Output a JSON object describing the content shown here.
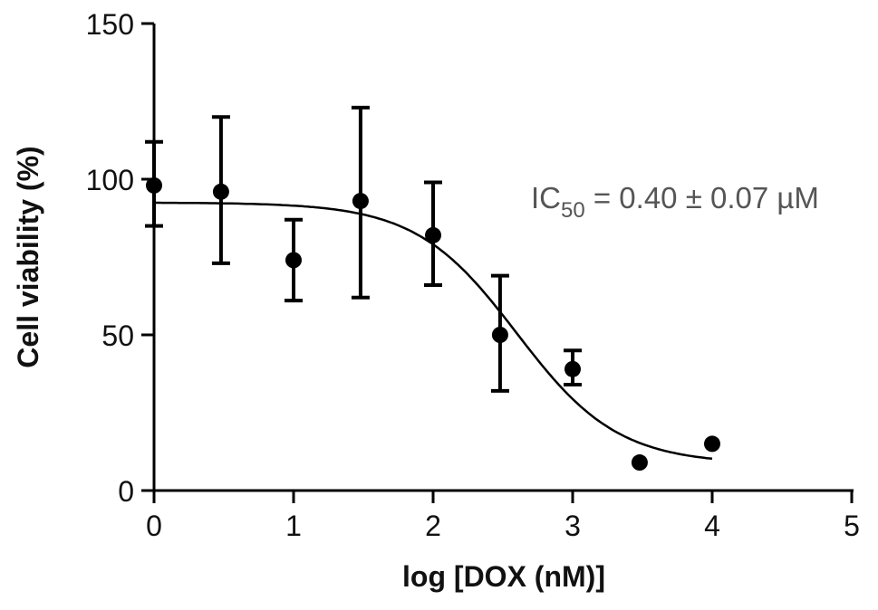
{
  "chart_data": {
    "type": "scatter",
    "xlabel": "log [DOX (nM)]",
    "ylabel": "Cell viability (%)",
    "xlim": [
      0,
      5
    ],
    "ylim": [
      0,
      150
    ],
    "x_ticks": [
      "0",
      "1",
      "2",
      "3",
      "4",
      "5"
    ],
    "y_ticks": [
      "0",
      "50",
      "100",
      "150"
    ],
    "grid": false,
    "points": [
      {
        "x": 0.0,
        "y": 98,
        "err_low": 85,
        "err_high": 112
      },
      {
        "x": 0.48,
        "y": 96,
        "err_low": 73,
        "err_high": 120
      },
      {
        "x": 1.0,
        "y": 74,
        "err_low": 61,
        "err_high": 87
      },
      {
        "x": 1.48,
        "y": 93,
        "err_low": 62,
        "err_high": 123
      },
      {
        "x": 2.0,
        "y": 82,
        "err_low": 66,
        "err_high": 99
      },
      {
        "x": 2.48,
        "y": 50,
        "err_low": 32,
        "err_high": 69
      },
      {
        "x": 3.0,
        "y": 39,
        "err_low": 34,
        "err_high": 45
      },
      {
        "x": 3.48,
        "y": 9,
        "err_low": null,
        "err_high": null
      },
      {
        "x": 4.0,
        "y": 15,
        "err_low": null,
        "err_high": null
      }
    ],
    "fit_curve": {
      "type": "sigmoidal dose-response",
      "top": 92.5,
      "bottom": 8.5,
      "log_ic50": 2.6,
      "hill": 1.2,
      "x_range": [
        0,
        4
      ]
    },
    "annotation": {
      "prefix": "IC",
      "subscript": "50",
      "suffix": " = 0.40 ± 0.07 µM"
    }
  }
}
